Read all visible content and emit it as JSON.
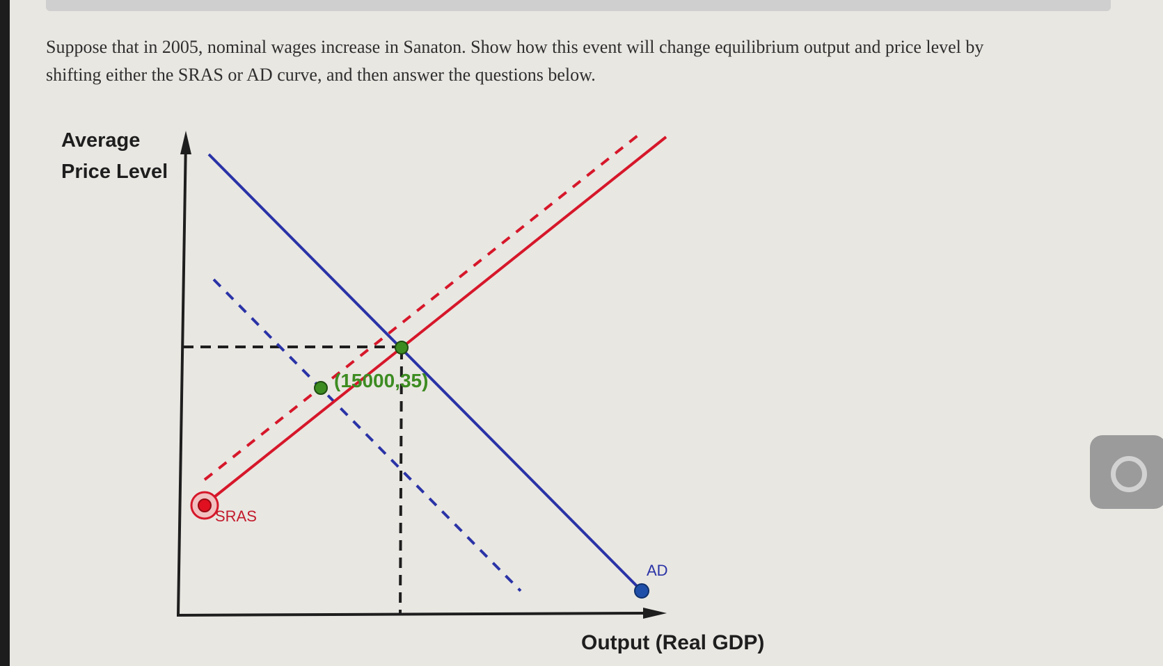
{
  "question": {
    "line1": "Suppose that in 2005, nominal wages increase in Sanaton. Show how this event will change equilibrium output and price level by",
    "line2": "shifting either the SRAS or AD curve, and then answer the questions below."
  },
  "graph": {
    "y_axis_label_line1": "Average",
    "y_axis_label_line2": "Price Level",
    "x_axis_label": "Output (Real GDP)",
    "sras_label": "SRAS",
    "ad_label": "AD",
    "point_label": "(15000,35)",
    "colors": {
      "sras": "#d6172a",
      "ad": "#2a33a6",
      "equilibrium_point": "#3d8c22",
      "axis": "#1e1e1e"
    }
  },
  "side_button": {
    "icon": "circle-icon"
  }
}
